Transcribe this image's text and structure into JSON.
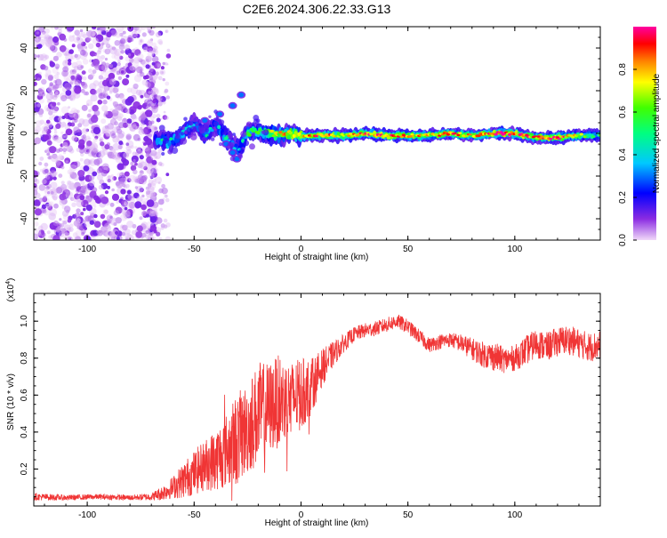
{
  "title": "C2E6.2024.306.22.33.G13",
  "colors": {
    "snr_line": "#f03535",
    "noise_purple": "#8a2be2",
    "axis": "#000000"
  },
  "chart_data": [
    {
      "type": "heatmap",
      "title": "C2E6.2024.306.22.33.G13",
      "xlabel": "Height of straight line (km)",
      "ylabel": "Frequency (Hz)",
      "xlim": [
        -125,
        140
      ],
      "ylim": [
        -50,
        50
      ],
      "x_ticks": [
        -100,
        -50,
        0,
        50,
        100
      ],
      "y_ticks": [
        -40,
        -20,
        0,
        20,
        40
      ],
      "colorbar": {
        "label": "Normalized spectral amplitude",
        "range": [
          0,
          1
        ],
        "ticks": [
          0.0,
          0.2,
          0.4,
          0.6,
          0.8
        ],
        "colormap": "purple-blue-cyan-green-yellow-red-magenta"
      },
      "noise_region_x": [
        -125,
        -68
      ],
      "signal_track": [
        {
          "x": -68,
          "y": -3,
          "amp": 0.35
        },
        {
          "x": -62,
          "y": -4,
          "amp": 0.45
        },
        {
          "x": -55,
          "y": 0,
          "amp": 0.4
        },
        {
          "x": -50,
          "y": 5,
          "amp": 0.3
        },
        {
          "x": -45,
          "y": -1,
          "amp": 0.4
        },
        {
          "x": -40,
          "y": 4,
          "amp": 0.3
        },
        {
          "x": -35,
          "y": -2,
          "amp": 0.45
        },
        {
          "x": -30,
          "y": -8,
          "amp": 0.3
        },
        {
          "x": -25,
          "y": 0,
          "amp": 0.55
        },
        {
          "x": -20,
          "y": 1,
          "amp": 0.5
        },
        {
          "x": -15,
          "y": 0,
          "amp": 0.6
        },
        {
          "x": -10,
          "y": -1,
          "amp": 0.7
        },
        {
          "x": -5,
          "y": 0,
          "amp": 0.8
        },
        {
          "x": 0,
          "y": -1,
          "amp": 0.75
        },
        {
          "x": 10,
          "y": -1,
          "amp": 0.8
        },
        {
          "x": 20,
          "y": -1,
          "amp": 0.7
        },
        {
          "x": 30,
          "y": 0,
          "amp": 0.85
        },
        {
          "x": 40,
          "y": -1,
          "amp": 0.8
        },
        {
          "x": 50,
          "y": -1,
          "amp": 0.75
        },
        {
          "x": 60,
          "y": -1,
          "amp": 0.7
        },
        {
          "x": 70,
          "y": 0,
          "amp": 0.8
        },
        {
          "x": 80,
          "y": -1,
          "amp": 0.7
        },
        {
          "x": 90,
          "y": 0,
          "amp": 0.9
        },
        {
          "x": 100,
          "y": 0,
          "amp": 0.85
        },
        {
          "x": 110,
          "y": -2,
          "amp": 0.75
        },
        {
          "x": 120,
          "y": -2,
          "amp": 0.85
        },
        {
          "x": 130,
          "y": -1,
          "amp": 0.6
        },
        {
          "x": 140,
          "y": -1,
          "amp": 0.5
        }
      ],
      "side_branches": [
        {
          "x": [
            -45,
            -38,
            -32,
            -28
          ],
          "y": [
            6,
            9,
            13,
            18
          ],
          "amp": 0.3
        },
        {
          "x": [
            -35,
            -32,
            -30
          ],
          "y": [
            -5,
            -9,
            -12
          ],
          "amp": 0.3
        }
      ]
    },
    {
      "type": "line",
      "xlabel": "Height of straight line (km)",
      "ylabel": "SNR (10 * v/v)",
      "y_scale_label": "(x10",
      "y_scale_exp": "4",
      "y_scale_close": ")",
      "xlim": [
        -125,
        140
      ],
      "ylim": [
        0,
        1.15
      ],
      "x_ticks": [
        -100,
        -50,
        0,
        50,
        100
      ],
      "y_ticks": [
        0.2,
        0.4,
        0.6,
        0.8,
        1.0
      ],
      "series": [
        {
          "x": [
            -125,
            -110,
            -95,
            -80,
            -70,
            -65,
            -60,
            -55,
            -50,
            -45,
            -40,
            -35,
            -30,
            -25,
            -20,
            -15,
            -10,
            -5,
            0,
            5,
            10,
            15,
            20,
            25,
            30,
            35,
            40,
            45,
            50,
            55,
            60,
            65,
            70,
            75,
            80,
            85,
            90,
            95,
            100,
            105,
            110,
            115,
            120,
            125,
            130,
            135,
            140
          ],
          "y": [
            0.05,
            0.045,
            0.05,
            0.045,
            0.05,
            0.07,
            0.1,
            0.14,
            0.18,
            0.22,
            0.25,
            0.3,
            0.36,
            0.42,
            0.5,
            0.53,
            0.57,
            0.58,
            0.6,
            0.65,
            0.75,
            0.82,
            0.88,
            0.93,
            0.95,
            0.96,
            0.98,
            1.0,
            0.97,
            0.92,
            0.87,
            0.89,
            0.9,
            0.88,
            0.85,
            0.82,
            0.81,
            0.79,
            0.8,
            0.84,
            0.88,
            0.86,
            0.89,
            0.9,
            0.88,
            0.86,
            0.87
          ],
          "noise_amplitude": [
            0.02,
            0.015,
            0.015,
            0.015,
            0.02,
            0.04,
            0.06,
            0.1,
            0.12,
            0.14,
            0.17,
            0.2,
            0.25,
            0.25,
            0.28,
            0.25,
            0.25,
            0.2,
            0.2,
            0.15,
            0.1,
            0.07,
            0.05,
            0.04,
            0.04,
            0.04,
            0.04,
            0.04,
            0.04,
            0.04,
            0.04,
            0.04,
            0.04,
            0.05,
            0.06,
            0.07,
            0.08,
            0.07,
            0.07,
            0.08,
            0.08,
            0.08,
            0.08,
            0.08,
            0.08,
            0.08,
            0.08
          ]
        }
      ]
    }
  ]
}
